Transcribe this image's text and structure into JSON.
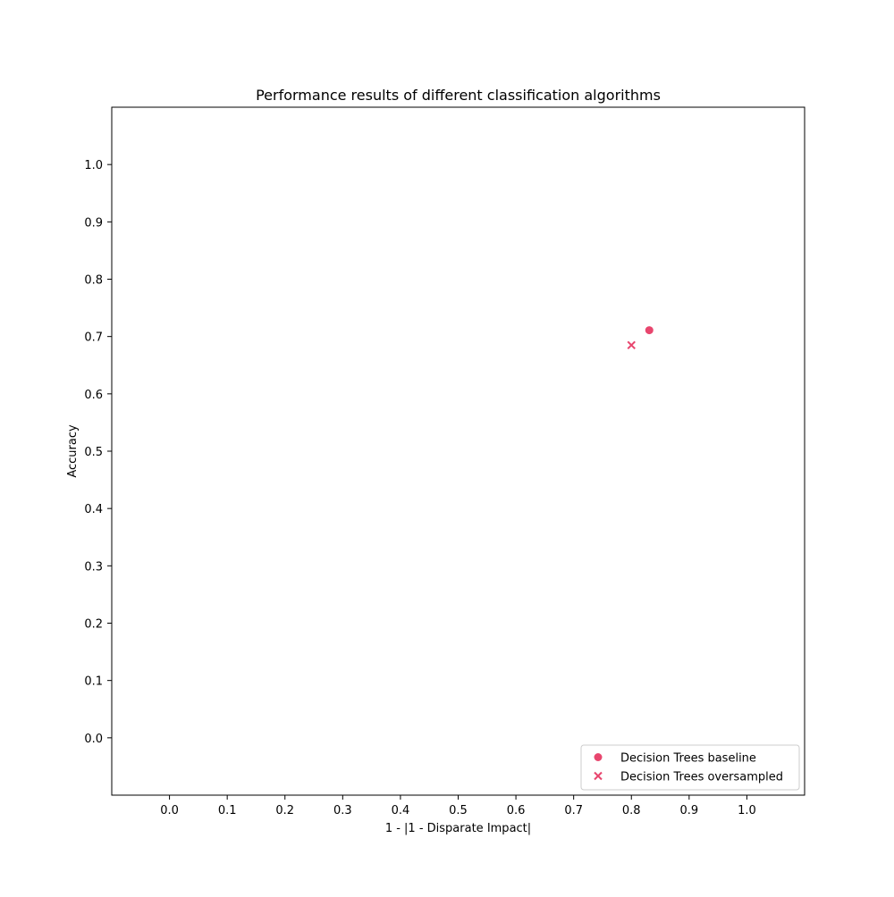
{
  "chart_data": {
    "type": "scatter",
    "title": "Performance results of different classification algorithms",
    "xlabel": "1 - |1 - Disparate Impact|",
    "ylabel": "Accuracy",
    "xlim": [
      -0.1,
      1.1
    ],
    "ylim": [
      -0.1,
      1.1
    ],
    "xticks": [
      0.0,
      0.1,
      0.2,
      0.3,
      0.4,
      0.5,
      0.6,
      0.7,
      0.8,
      0.9,
      1.0
    ],
    "yticks": [
      0.0,
      0.1,
      0.2,
      0.3,
      0.4,
      0.5,
      0.6,
      0.7,
      0.8,
      0.9,
      1.0
    ],
    "grid": false,
    "legend_position": "lower-right",
    "series": [
      {
        "name": "Decision Trees baseline",
        "marker": "circle",
        "color": "#e8466e",
        "points": [
          {
            "x": 0.831,
            "y": 0.711
          }
        ]
      },
      {
        "name": "Decision Trees oversampled",
        "marker": "x",
        "color": "#e8466e",
        "points": [
          {
            "x": 0.8,
            "y": 0.685
          }
        ]
      }
    ]
  }
}
